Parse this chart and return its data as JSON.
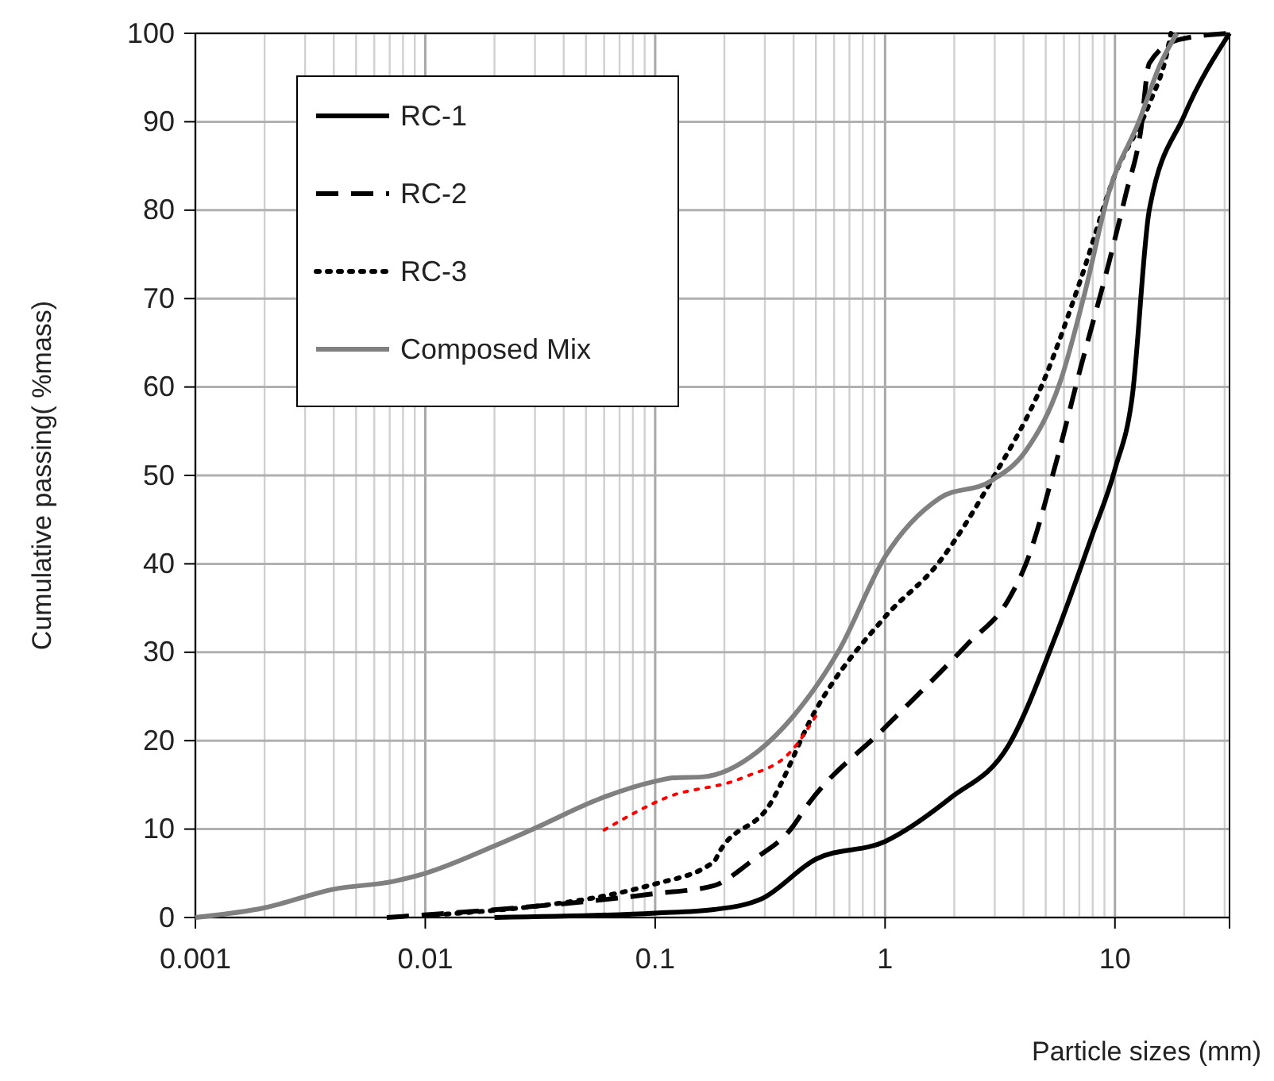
{
  "chart_data": {
    "type": "line",
    "xlabel": "Particle sizes (mm)",
    "ylabel": "Cumulative passing( %mass)",
    "log": "x",
    "xlim": [
      0.001,
      31.5
    ],
    "ylim": [
      0,
      100
    ],
    "xticks": [
      {
        "value": 0.001,
        "label": "0.001"
      },
      {
        "value": 0.01,
        "label": "0.01"
      },
      {
        "value": 0.1,
        "label": "0.1"
      },
      1,
      10
    ],
    "yticks": [
      0,
      10,
      20,
      30,
      40,
      50,
      60,
      70,
      80,
      90,
      100
    ],
    "grid": true,
    "legend": "top left",
    "marker": "none",
    "series": [
      {
        "name": "RC-1",
        "color": "#000000",
        "line_style": "solid",
        "x": [
          0.02,
          0.1,
          0.18,
          0.29,
          0.5,
          1,
          1.92,
          3.45,
          5.55,
          7.9,
          10,
          11.9,
          14.1,
          20,
          31.5
        ],
        "values": [
          0,
          0.5,
          0.9,
          2.1,
          6.6,
          8.6,
          13.5,
          19.5,
          32,
          43,
          50.7,
          59,
          80,
          90.7,
          100
        ]
      },
      {
        "name": "RC-2",
        "color": "#000000",
        "line_style": "dashed",
        "x": [
          0.0068,
          0.1,
          0.18,
          0.24,
          0.26,
          0.4,
          0.445,
          1,
          2.28,
          3.45,
          4.1,
          5.55,
          7.06,
          9.4,
          11.2,
          12.9,
          14.1,
          19,
          31.5
        ],
        "values": [
          0,
          2.7,
          3.6,
          5.6,
          6.3,
          10.4,
          12.2,
          21.5,
          30.9,
          36,
          40,
          51.5,
          62,
          74,
          82,
          88.7,
          96.6,
          99.3,
          100
        ]
      },
      {
        "name": "RC-3",
        "color": "#000000",
        "line_style": "dotted",
        "x": [
          0.011,
          0.1,
          0.18,
          0.19,
          0.31,
          0.5,
          1,
          1.72,
          2.9,
          4.9,
          7.06,
          10,
          14.1,
          16.9,
          17.5
        ],
        "values": [
          0.3,
          3.8,
          6.3,
          7.4,
          12.5,
          23.5,
          34,
          40.2,
          49.4,
          60.7,
          72,
          84,
          92,
          98,
          100
        ]
      },
      {
        "name": "Composed Mix",
        "color": "#808080",
        "line_style": "solid",
        "x": [
          0.001,
          0.002,
          0.004,
          0.0073,
          0.01,
          0.02,
          0.03,
          0.057,
          0.1,
          0.12,
          0.16,
          0.28,
          0.4,
          0.63,
          1,
          1.72,
          2.9,
          4.1,
          5.8,
          7.4,
          9.4,
          12.7,
          15.8,
          18.6
        ],
        "values": [
          0,
          1.1,
          3.2,
          4.1,
          5,
          8.1,
          10.1,
          13.4,
          15.4,
          15.8,
          15.9,
          18.8,
          22.8,
          30.2,
          40.8,
          47.4,
          49.4,
          52.8,
          60.7,
          70.7,
          82,
          90,
          96.6,
          100
        ]
      },
      {
        "color": "#ff0000",
        "line_style": "dotted",
        "x": [
          0.06,
          0.113,
          0.24,
          0.39,
          0.5
        ],
        "values": [
          9.9,
          13.6,
          15.8,
          18.8,
          22.8
        ]
      }
    ]
  }
}
